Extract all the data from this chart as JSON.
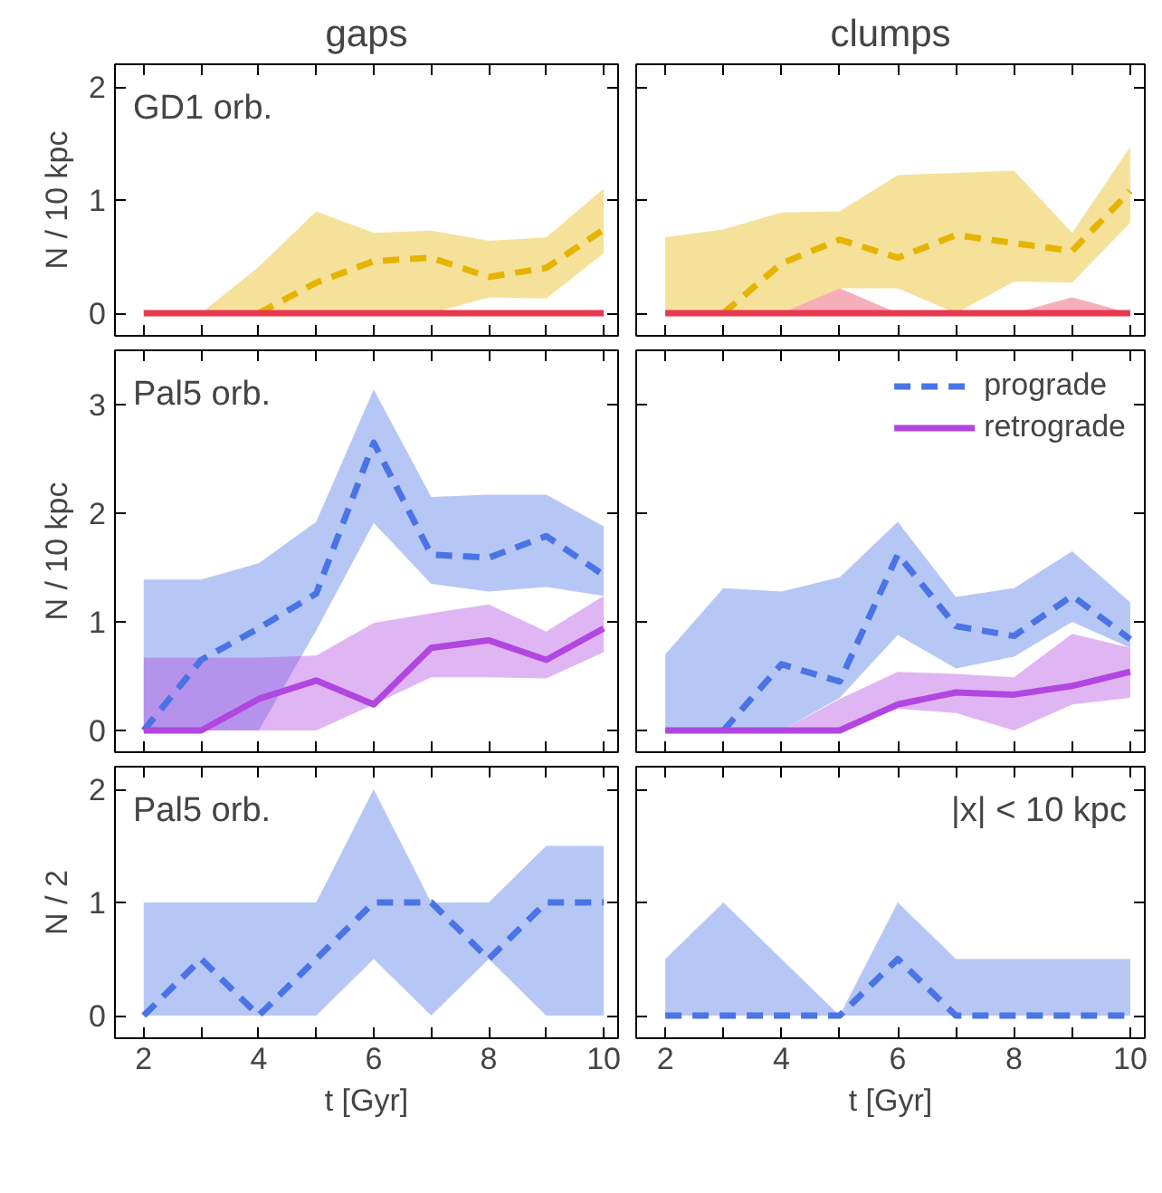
{
  "chart_data": [
    {
      "type": "line",
      "title": "gaps",
      "ylabel": "N / 10 kpc",
      "annotations": [
        "GD1 orb."
      ],
      "x": [
        2,
        3,
        4,
        5,
        6,
        7,
        8,
        9,
        10
      ],
      "xlim": [
        1.5,
        10.25
      ],
      "ylim": [
        -0.2,
        2.2
      ],
      "xticks": [
        2,
        {
          "value": 3,
          "label": null
        },
        4,
        {
          "value": 5,
          "label": null
        },
        6,
        {
          "value": 7,
          "label": null
        },
        8,
        {
          "value": 9,
          "label": null
        },
        10
      ],
      "yticks": [
        0,
        1,
        2
      ],
      "tick_labels": "y",
      "series": [
        {
          "color": "#e6b400",
          "line_style": "dashed",
          "values": [
            null,
            null,
            0,
            0.27,
            0.46,
            0.49,
            0.32,
            0.4,
            0.74
          ],
          "lower": [
            0,
            0,
            0,
            0,
            0,
            0,
            0.14,
            0.13,
            0.53
          ],
          "upper": [
            0,
            0,
            0.41,
            0.9,
            0.71,
            0.73,
            0.64,
            0.67,
            1.1
          ]
        },
        {
          "color": "#e8384f",
          "line_style": "solid",
          "values": [
            0,
            0,
            0,
            0,
            0,
            0,
            0,
            0,
            0
          ]
        }
      ]
    },
    {
      "type": "line",
      "title": "clumps",
      "x": [
        2,
        3,
        4,
        5,
        6,
        7,
        8,
        9,
        10
      ],
      "xlim": [
        1.5,
        10.25
      ],
      "ylim": [
        -0.2,
        2.2
      ],
      "xticks": [
        2,
        {
          "value": 3,
          "label": null
        },
        4,
        {
          "value": 5,
          "label": null
        },
        6,
        {
          "value": 7,
          "label": null
        },
        8,
        {
          "value": 9,
          "label": null
        },
        10
      ],
      "yticks": [
        0,
        1,
        2
      ],
      "tick_labels": false,
      "series": [
        {
          "color": "#e6b400",
          "line_style": "dashed",
          "values": [
            null,
            0,
            0.44,
            0.65,
            0.49,
            0.69,
            0.62,
            0.55,
            1.08
          ],
          "lower": [
            0,
            0,
            0,
            0.22,
            0.22,
            0,
            0.28,
            0.27,
            0.8
          ],
          "upper": [
            0.67,
            0.74,
            0.89,
            0.9,
            1.22,
            1.24,
            1.26,
            0.71,
            1.47
          ]
        },
        {
          "color": "#e8384f",
          "line_style": "solid",
          "values": [
            0,
            0,
            0,
            0,
            0,
            0,
            0,
            0,
            0
          ],
          "lower": [
            0,
            0,
            0,
            0,
            0,
            0,
            0,
            0,
            0
          ],
          "upper": [
            0,
            0,
            0,
            0.22,
            0,
            0,
            0,
            0.14,
            0
          ]
        }
      ]
    },
    {
      "type": "line",
      "ylabel": "N / 10 kpc",
      "annotations": [
        "Pal5 orb."
      ],
      "x": [
        2,
        3,
        4,
        5,
        6,
        7,
        8,
        9,
        10
      ],
      "xlim": [
        1.5,
        10.25
      ],
      "ylim": [
        -0.2,
        3.5
      ],
      "xticks": [
        2,
        {
          "value": 3,
          "label": null
        },
        4,
        {
          "value": 5,
          "label": null
        },
        6,
        {
          "value": 7,
          "label": null
        },
        8,
        {
          "value": 9,
          "label": null
        },
        10
      ],
      "yticks": [
        0,
        1,
        2,
        3
      ],
      "tick_labels": "y",
      "series": [
        {
          "color": "#4a74e6",
          "line_style": "dashed",
          "values": [
            0,
            0.65,
            0.94,
            1.26,
            2.65,
            1.62,
            1.59,
            1.79,
            1.43
          ],
          "lower": [
            0,
            0,
            0,
            0.92,
            1.91,
            1.35,
            1.28,
            1.32,
            1.24
          ],
          "upper": [
            1.39,
            1.39,
            1.54,
            1.92,
            3.14,
            2.15,
            2.17,
            2.17,
            1.88
          ]
        },
        {
          "color": "#b146e0",
          "line_style": "solid",
          "values": [
            0,
            0,
            0.29,
            0.46,
            0.24,
            0.76,
            0.83,
            0.65,
            0.94
          ],
          "lower": [
            0,
            0,
            0,
            0,
            0.24,
            0.49,
            0.49,
            0.48,
            0.72
          ],
          "upper": [
            0.67,
            0.67,
            0.67,
            0.69,
            0.99,
            1.08,
            1.16,
            0.91,
            1.24
          ]
        }
      ]
    },
    {
      "type": "line",
      "legend": "top right",
      "x": [
        2,
        3,
        4,
        5,
        6,
        7,
        8,
        9,
        10
      ],
      "xlim": [
        1.5,
        10.25
      ],
      "ylim": [
        -0.2,
        3.5
      ],
      "xticks": [
        2,
        {
          "value": 3,
          "label": null
        },
        4,
        {
          "value": 5,
          "label": null
        },
        6,
        {
          "value": 7,
          "label": null
        },
        8,
        {
          "value": 9,
          "label": null
        },
        10
      ],
      "yticks": [
        0,
        1,
        2,
        3
      ],
      "tick_labels": false,
      "series": [
        {
          "name": "prograde",
          "color": "#4a74e6",
          "line_style": "dashed",
          "values": [
            null,
            0,
            0.61,
            0.45,
            1.62,
            0.96,
            0.87,
            1.24,
            0.84
          ],
          "lower": [
            0,
            0,
            0,
            0.3,
            0.88,
            0.57,
            0.68,
            1.0,
            0.76
          ],
          "upper": [
            0.7,
            1.31,
            1.28,
            1.41,
            1.92,
            1.23,
            1.31,
            1.65,
            1.18
          ]
        },
        {
          "name": "retrograde",
          "color": "#b146e0",
          "line_style": "solid",
          "values": [
            0,
            0,
            0,
            0,
            0.24,
            0.35,
            0.33,
            0.41,
            0.54
          ],
          "lower": [
            0,
            0,
            0,
            0,
            0.2,
            0.16,
            0,
            0.24,
            0.3
          ],
          "upper": [
            0,
            0,
            0,
            0.29,
            0.54,
            0.52,
            0.49,
            0.89,
            0.76
          ]
        }
      ]
    },
    {
      "type": "line",
      "ylabel": "N / 2",
      "xlabel": "t [Gyr]",
      "annotations": [
        "Pal5 orb."
      ],
      "x": [
        2,
        3,
        4,
        5,
        6,
        7,
        8,
        9,
        10
      ],
      "xlim": [
        1.5,
        10.25
      ],
      "ylim": [
        -0.2,
        2.2
      ],
      "xticks": [
        2,
        {
          "value": 3,
          "label": null
        },
        4,
        {
          "value": 5,
          "label": null
        },
        6,
        {
          "value": 7,
          "label": null
        },
        8,
        {
          "value": 9,
          "label": null
        },
        10
      ],
      "yticks": [
        0,
        1,
        2
      ],
      "series": [
        {
          "color": "#4a74e6",
          "line_style": "dashed",
          "values": [
            0,
            0.5,
            0,
            0.5,
            1,
            1,
            0.5,
            1,
            1
          ],
          "lower": [
            0,
            0,
            0,
            0,
            0.5,
            0,
            0.5,
            0,
            0
          ],
          "upper": [
            1,
            1,
            1,
            1,
            2,
            1,
            1,
            1.5,
            1.5
          ]
        }
      ]
    },
    {
      "type": "line",
      "xlabel": "t [Gyr]",
      "annotations": [
        "|x| < 10 kpc"
      ],
      "x": [
        2,
        3,
        4,
        5,
        6,
        7,
        8,
        9,
        10
      ],
      "xlim": [
        1.5,
        10.25
      ],
      "ylim": [
        -0.2,
        2.2
      ],
      "xticks": [
        2,
        {
          "value": 3,
          "label": null
        },
        4,
        {
          "value": 5,
          "label": null
        },
        6,
        {
          "value": 7,
          "label": null
        },
        8,
        {
          "value": 9,
          "label": null
        },
        10
      ],
      "yticks": [
        0,
        1,
        2
      ],
      "tick_labels": "x",
      "series": [
        {
          "color": "#4a74e6",
          "line_style": "dashed",
          "values": [
            0,
            0,
            0,
            0,
            0.5,
            0,
            0,
            0,
            0
          ],
          "lower": [
            0,
            0,
            0,
            0,
            0,
            0,
            0,
            0,
            0
          ],
          "upper": [
            0.5,
            1,
            0.5,
            0,
            1,
            0.5,
            0.5,
            0.5,
            0.5
          ]
        }
      ]
    }
  ]
}
